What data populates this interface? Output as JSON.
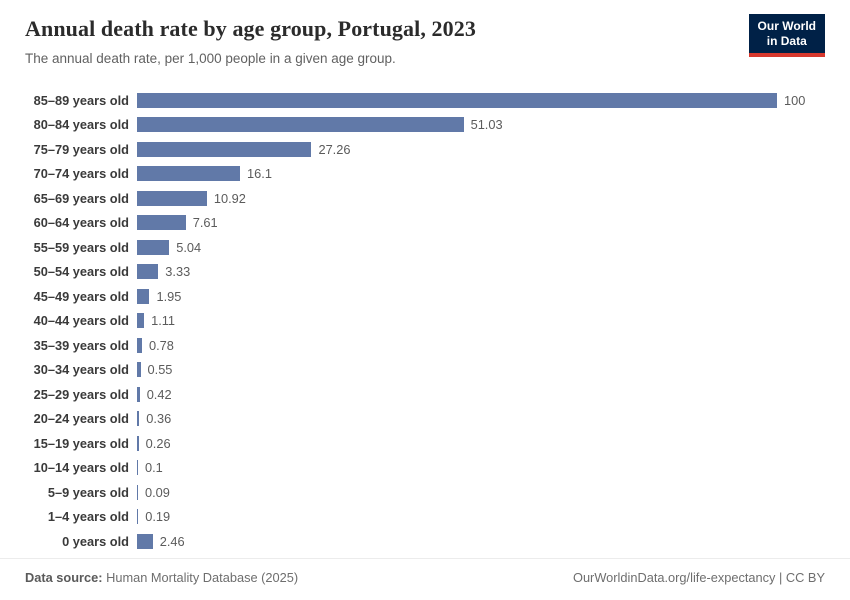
{
  "header": {
    "title": "Annual death rate by age group, Portugal, 2023",
    "subtitle": "The annual death rate, per 1,000 people in a given age group.",
    "logo": {
      "line1": "Our World",
      "line2": "in Data",
      "bg_color": "#002147",
      "accent_color": "#d7382e"
    }
  },
  "chart_data": {
    "type": "bar",
    "orientation": "horizontal",
    "title": "Annual death rate by age group, Portugal, 2023",
    "subtitle": "The annual death rate, per 1,000 people in a given age group.",
    "xlabel": "",
    "ylabel": "",
    "xlim": [
      0,
      100
    ],
    "grid": false,
    "legend": false,
    "bar_color": "#6179a8",
    "categories": [
      "85–89 years old",
      "80–84 years old",
      "75–79 years old",
      "70–74 years old",
      "65–69 years old",
      "60–64 years old",
      "55–59 years old",
      "50–54 years old",
      "45–49 years old",
      "40–44 years old",
      "35–39 years old",
      "30–34 years old",
      "25–29 years old",
      "20–24 years old",
      "15–19 years old",
      "10–14 years old",
      "5–9 years old",
      "1–4 years old",
      "0 years old"
    ],
    "values": [
      100,
      51.03,
      27.26,
      16.1,
      10.92,
      7.61,
      5.04,
      3.33,
      1.95,
      1.11,
      0.78,
      0.55,
      0.42,
      0.36,
      0.26,
      0.1,
      0.09,
      0.19,
      2.46
    ],
    "value_labels": [
      "100",
      "51.03",
      "27.26",
      "16.1",
      "10.92",
      "7.61",
      "5.04",
      "3.33",
      "1.95",
      "1.11",
      "0.78",
      "0.55",
      "0.42",
      "0.36",
      "0.26",
      "0.1",
      "0.09",
      "0.19",
      "2.46"
    ]
  },
  "footer": {
    "source_label": "Data source:",
    "source_value": "Human Mortality Database (2025)",
    "credit": "OurWorldinData.org/life-expectancy | CC BY"
  }
}
